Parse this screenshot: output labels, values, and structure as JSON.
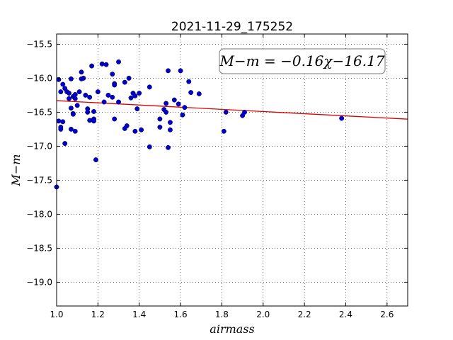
{
  "chart_data": {
    "type": "scatter",
    "title": "2021-11-29_175252",
    "xlabel": "airmass",
    "ylabel": "M−m",
    "xlim": [
      1.0,
      2.7
    ],
    "ylim": [
      -19.35,
      -15.35
    ],
    "xticks": [
      1.0,
      1.2,
      1.4,
      1.6,
      1.8,
      2.0,
      2.2,
      2.4,
      2.6
    ],
    "xtick_labels": [
      "1.0",
      "1.2",
      "1.4",
      "1.6",
      "1.8",
      "2.0",
      "2.2",
      "2.4",
      "2.6"
    ],
    "yticks": [
      -15.5,
      -16.0,
      -16.5,
      -17.0,
      -17.5,
      -18.0,
      -18.5,
      -19.0
    ],
    "ytick_labels": [
      "−15.5",
      "−16.0",
      "−16.5",
      "−17.0",
      "−17.5",
      "−18.0",
      "−18.5",
      "−19.0"
    ],
    "grid": true,
    "annotation": "M−m = −0.16χ−16.17",
    "annotation_position": "top-right",
    "marker_color": "#0000cc",
    "fit_color": "#dd0000",
    "fit": {
      "slope": -0.16,
      "intercept": -16.17
    },
    "points": [
      [
        1.0,
        -17.6
      ],
      [
        1.01,
        -16.02
      ],
      [
        1.01,
        -16.63
      ],
      [
        1.02,
        -16.2
      ],
      [
        1.02,
        -16.72
      ],
      [
        1.02,
        -16.75
      ],
      [
        1.03,
        -16.09
      ],
      [
        1.03,
        -16.64
      ],
      [
        1.04,
        -16.15
      ],
      [
        1.04,
        -16.96
      ],
      [
        1.05,
        -16.2
      ],
      [
        1.06,
        -16.22
      ],
      [
        1.06,
        -16.3
      ],
      [
        1.07,
        -16.01
      ],
      [
        1.07,
        -16.44
      ],
      [
        1.07,
        -16.75
      ],
      [
        1.08,
        -16.27
      ],
      [
        1.08,
        -16.52
      ],
      [
        1.08,
        -16.53
      ],
      [
        1.09,
        -16.24
      ],
      [
        1.09,
        -16.3
      ],
      [
        1.09,
        -16.78
      ],
      [
        1.1,
        -16.4
      ],
      [
        1.11,
        -16.2
      ],
      [
        1.12,
        -15.91
      ],
      [
        1.12,
        -16.01
      ],
      [
        1.13,
        -16.0
      ],
      [
        1.14,
        -16.25
      ],
      [
        1.15,
        -16.45
      ],
      [
        1.15,
        -16.5
      ],
      [
        1.16,
        -16.28
      ],
      [
        1.16,
        -16.62
      ],
      [
        1.17,
        -15.82
      ],
      [
        1.18,
        -16.49
      ],
      [
        1.18,
        -16.63
      ],
      [
        1.18,
        -16.6
      ],
      [
        1.19,
        -17.2
      ],
      [
        1.2,
        -16.2
      ],
      [
        1.22,
        -15.79
      ],
      [
        1.23,
        -16.35
      ],
      [
        1.24,
        -15.8
      ],
      [
        1.25,
        -16.25
      ],
      [
        1.27,
        -15.94
      ],
      [
        1.27,
        -16.28
      ],
      [
        1.28,
        -16.08
      ],
      [
        1.28,
        -16.1
      ],
      [
        1.28,
        -16.6
      ],
      [
        1.3,
        -15.76
      ],
      [
        1.3,
        -16.35
      ],
      [
        1.33,
        -16.06
      ],
      [
        1.33,
        -16.74
      ],
      [
        1.34,
        -16.7
      ],
      [
        1.35,
        -16.0
      ],
      [
        1.36,
        -16.29
      ],
      [
        1.37,
        -16.22
      ],
      [
        1.38,
        -16.26
      ],
      [
        1.38,
        -16.78
      ],
      [
        1.39,
        -16.45
      ],
      [
        1.4,
        -16.22
      ],
      [
        1.41,
        -16.76
      ],
      [
        1.45,
        -16.13
      ],
      [
        1.45,
        -17.01
      ],
      [
        1.5,
        -16.6
      ],
      [
        1.5,
        -16.72
      ],
      [
        1.52,
        -16.46
      ],
      [
        1.53,
        -16.5
      ],
      [
        1.53,
        -16.37
      ],
      [
        1.54,
        -17.02
      ],
      [
        1.54,
        -15.89
      ],
      [
        1.55,
        -16.65
      ],
      [
        1.55,
        -16.76
      ],
      [
        1.57,
        -16.32
      ],
      [
        1.59,
        -16.38
      ],
      [
        1.6,
        -15.89
      ],
      [
        1.61,
        -16.54
      ],
      [
        1.62,
        -16.43
      ],
      [
        1.64,
        -16.05
      ],
      [
        1.65,
        -16.21
      ],
      [
        1.69,
        -16.23
      ],
      [
        1.81,
        -16.78
      ],
      [
        1.82,
        -16.5
      ],
      [
        1.9,
        -16.55
      ],
      [
        1.91,
        -16.5
      ],
      [
        2.38,
        -16.59
      ]
    ]
  }
}
